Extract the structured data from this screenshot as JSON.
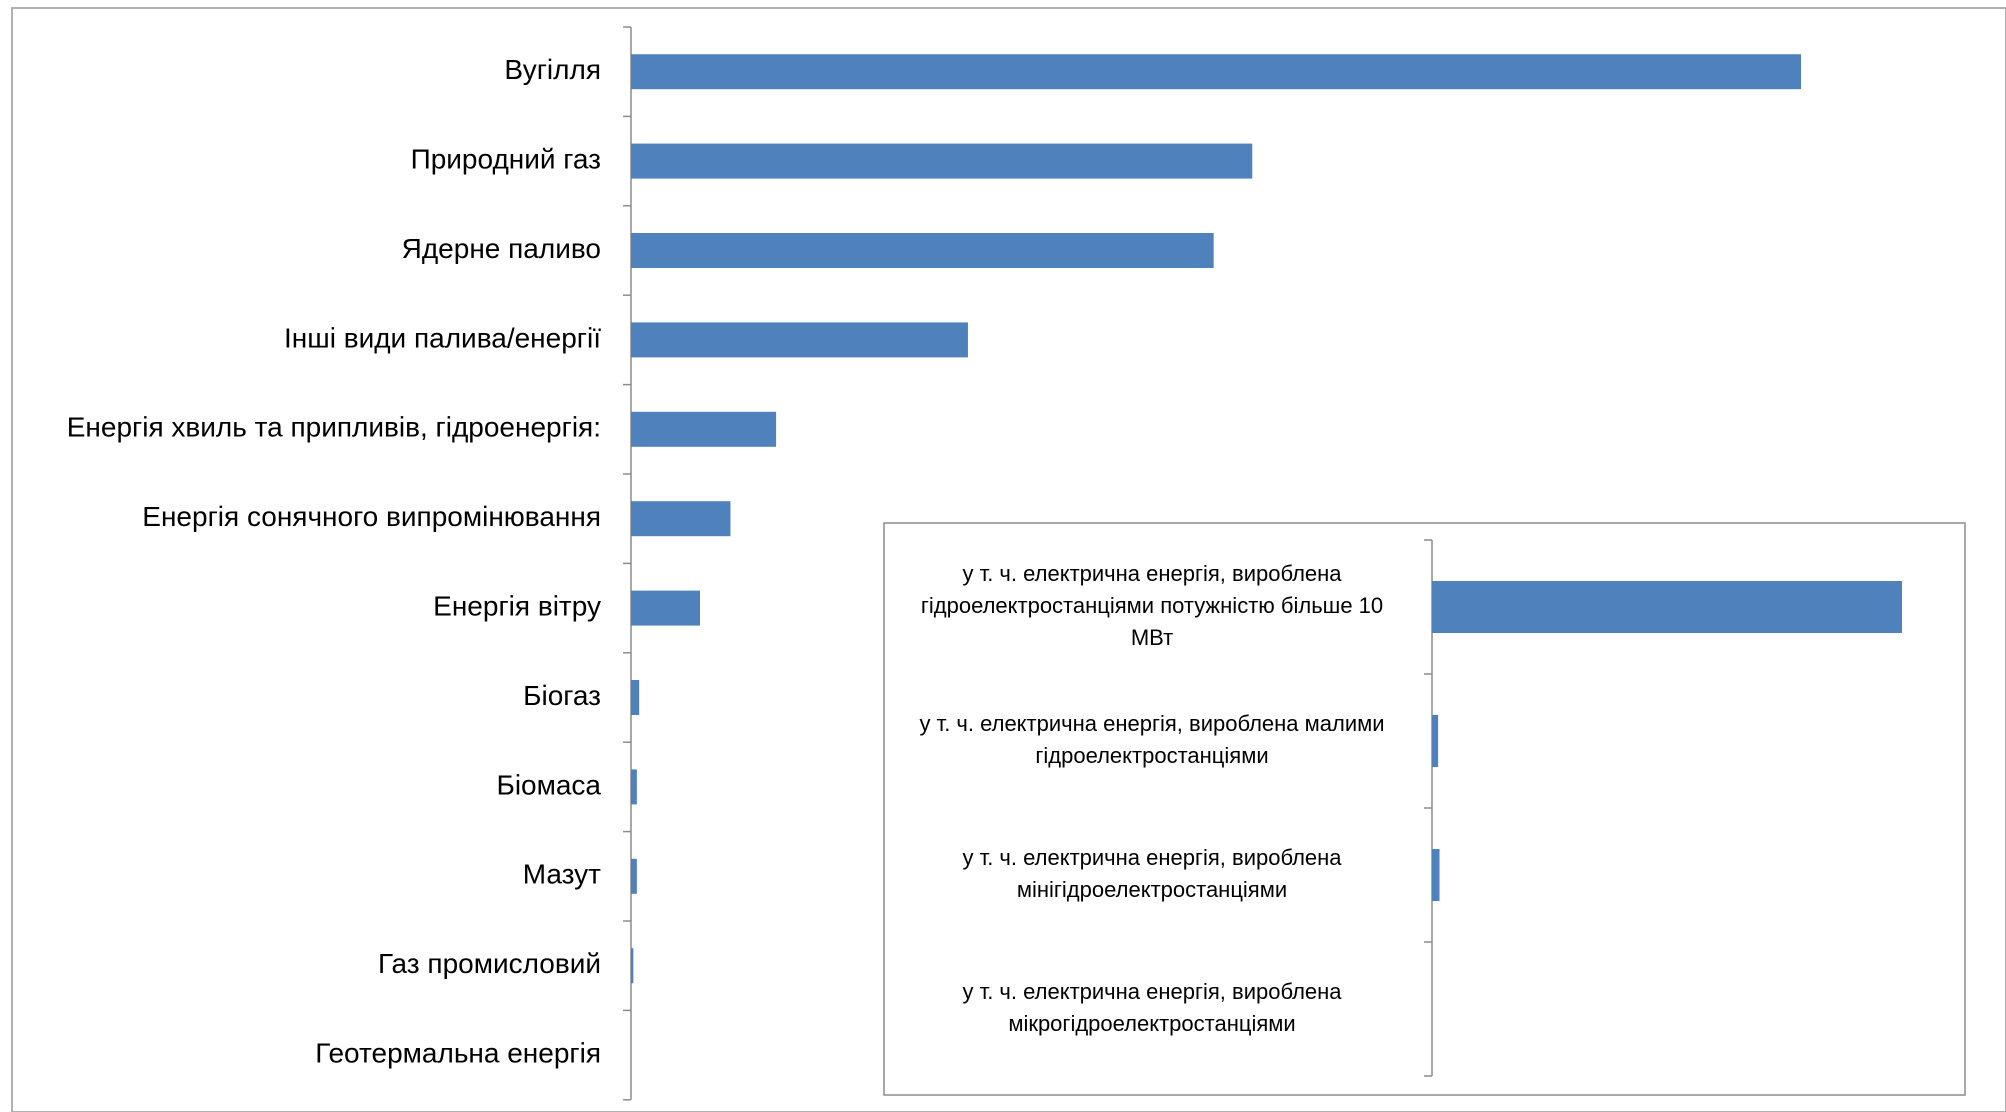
{
  "chart_data": [
    {
      "type": "bar",
      "orientation": "horizontal",
      "categories": [
        "Вугілля",
        "Природний газ",
        "Ядерне паливо",
        "Інші види палива/енергії",
        "Енергія хвиль та припливів, гідроенергія:",
        "Енергія сонячного випромінювання",
        "Енергія вітру",
        "Біогаз",
        "Біомаса",
        "Мазут",
        "Газ промисловий",
        "Геотермальна енергія"
      ],
      "values": [
        100,
        53.1,
        49.8,
        28.8,
        12.4,
        8.5,
        5.9,
        0.7,
        0.5,
        0.5,
        0.2,
        0
      ],
      "xlim": [
        0,
        100
      ],
      "grid": false,
      "legend": "none",
      "bar_color": "#4f81bd"
    },
    {
      "type": "bar",
      "orientation": "horizontal",
      "categories": [
        "у т. ч. електрична енергія, вироблена гідроелектростанціями  потужністю більше 10 МВт",
        "у т. ч. електрична енергія, вироблена малими гідроелектростанціями",
        "у т. ч. електрична енергія, вироблена мінігідроелектростанціями",
        "у т. ч. електрична енергія, вироблена мікрогідроелектростанціями"
      ],
      "label_lines": [
        [
          "у т. ч. електрична енергія, вироблена",
          "гідроелектростанціями  потужністю більше 10",
          "МВт"
        ],
        [
          "у т. ч. електрична енергія, вироблена малими",
          "гідроелектростанціями"
        ],
        [
          "у т. ч. електрична енергія, вироблена",
          "мінігідроелектростанціями"
        ],
        [
          "у т. ч. електрична енергія, вироблена",
          "мікрогідроелектростанціями"
        ]
      ],
      "values": [
        100,
        1.3,
        1.6,
        0
      ],
      "xlim": [
        0,
        100
      ],
      "grid": false,
      "legend": "none",
      "bar_color": "#4f81bd"
    }
  ]
}
